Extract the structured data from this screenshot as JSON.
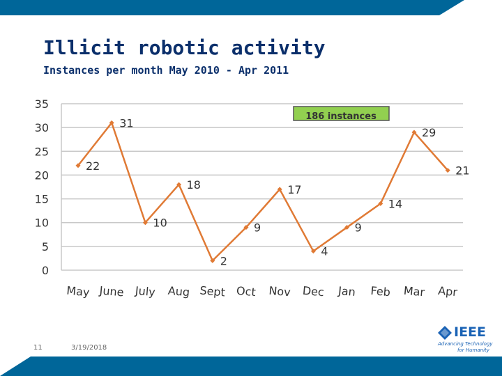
{
  "slide": {
    "title": "Illicit robotic activity",
    "subtitle": "Instances per month May 2010 - Apr 2011",
    "slide_number": "11",
    "date": "3/19/2018",
    "logo_text": "IEEE",
    "logo_tagline_1": "Advancing Technology",
    "logo_tagline_2": "for Humanity",
    "brand_color": "#006699",
    "logo_color": "#1b63b5"
  },
  "chart_data": {
    "type": "line",
    "categories": [
      "May",
      "June",
      "July",
      "Aug",
      "Sept",
      "Oct",
      "Nov",
      "Dec",
      "Jan",
      "Feb",
      "Mar",
      "Apr"
    ],
    "values": [
      22,
      31,
      10,
      18,
      2,
      9,
      17,
      4,
      9,
      14,
      29,
      21
    ],
    "data_labels": [
      "22",
      "31",
      "10",
      "18",
      "2",
      "9",
      "17",
      "4",
      "9",
      "14",
      "29",
      "21"
    ],
    "y_ticks": [
      "0",
      "5",
      "10",
      "15",
      "20",
      "25",
      "30",
      "35"
    ],
    "ylim": [
      0,
      35
    ],
    "grid": true,
    "annotation": "186 instances",
    "line_color": "#e07a35",
    "annotation_color": "#92d050"
  }
}
